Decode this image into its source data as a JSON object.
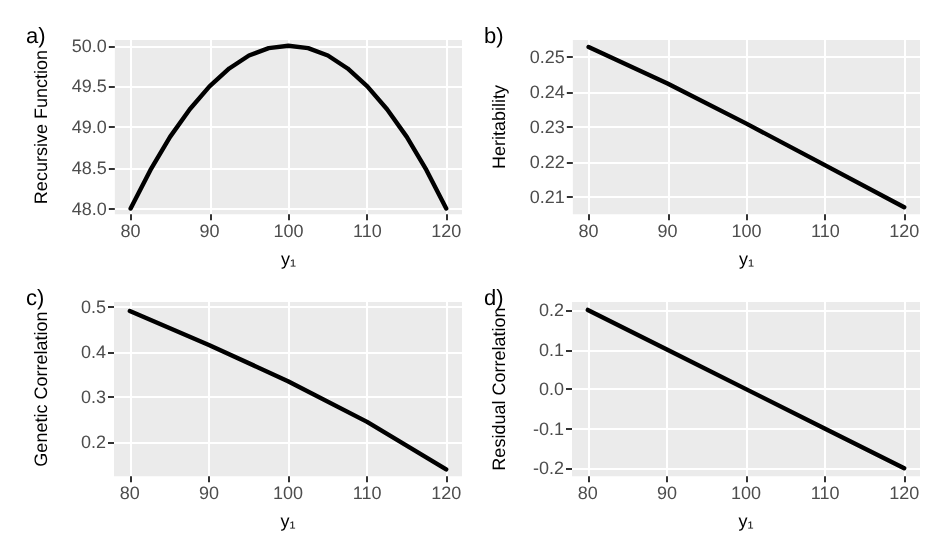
{
  "chart_data": [
    {
      "type": "line",
      "title": "a)",
      "xlabel": "y₁",
      "ylabel": "Recursive Function",
      "x": [
        80,
        82.5,
        85,
        87.5,
        90,
        92.5,
        95,
        97.5,
        100,
        102.5,
        105,
        107.5,
        110,
        112.5,
        115,
        117.5,
        120
      ],
      "series": [
        {
          "color": "#000000",
          "values": [
            48.0,
            48.47,
            48.88,
            49.22,
            49.5,
            49.72,
            49.88,
            49.97,
            50.0,
            49.97,
            49.88,
            49.72,
            49.5,
            49.22,
            48.88,
            48.47,
            48.0
          ]
        }
      ],
      "xlim": [
        78,
        122
      ],
      "ylim": [
        47.93,
        50.07
      ],
      "xticks": [
        80,
        90,
        100,
        110,
        120
      ],
      "yticks": [
        {
          "value": 48,
          "label": "48.0"
        },
        48.5,
        {
          "value": 49,
          "label": "49.0"
        },
        49.5,
        {
          "value": 50,
          "label": "50.0"
        }
      ],
      "grid": true,
      "marker": "none",
      "line_style": "solid"
    },
    {
      "type": "line",
      "title": "b)",
      "xlabel": "y₁",
      "ylabel": "Heritability",
      "x": [
        80,
        90,
        100,
        110,
        120
      ],
      "series": [
        {
          "color": "#000000",
          "values": [
            0.253,
            0.2425,
            0.231,
            0.219,
            0.207
          ]
        }
      ],
      "xlim": [
        78,
        122
      ],
      "ylim": [
        0.205,
        0.255
      ],
      "xticks": [
        80,
        90,
        100,
        110,
        120
      ],
      "yticks": [
        0.21,
        0.22,
        0.23,
        0.24,
        0.25
      ],
      "grid": true,
      "marker": "none",
      "line_style": "solid"
    },
    {
      "type": "line",
      "title": "c)",
      "xlabel": "y₁",
      "ylabel": "Genetic Correlation",
      "x": [
        80,
        90,
        100,
        110,
        120
      ],
      "series": [
        {
          "color": "#000000",
          "values": [
            0.49,
            0.415,
            0.335,
            0.245,
            0.14
          ]
        }
      ],
      "xlim": [
        78,
        122
      ],
      "ylim": [
        0.125,
        0.51
      ],
      "xticks": [
        80,
        90,
        100,
        110,
        120
      ],
      "yticks": [
        0.2,
        0.3,
        0.4,
        0.5
      ],
      "grid": true,
      "marker": "none",
      "line_style": "solid"
    },
    {
      "type": "line",
      "title": "d)",
      "xlabel": "y₁",
      "ylabel": "Residual Correlation",
      "x": [
        80,
        90,
        100,
        110,
        120
      ],
      "series": [
        {
          "color": "#000000",
          "values": [
            0.2,
            0.1,
            0.0,
            -0.1,
            -0.2
          ]
        }
      ],
      "xlim": [
        78,
        122
      ],
      "ylim": [
        -0.22,
        0.22
      ],
      "xticks": [
        80,
        90,
        100,
        110,
        120
      ],
      "yticks": [
        -0.2,
        -0.1,
        {
          "value": 0,
          "label": "0.0"
        },
        0.1,
        0.2
      ],
      "grid": true,
      "marker": "none",
      "line_style": "solid"
    }
  ]
}
